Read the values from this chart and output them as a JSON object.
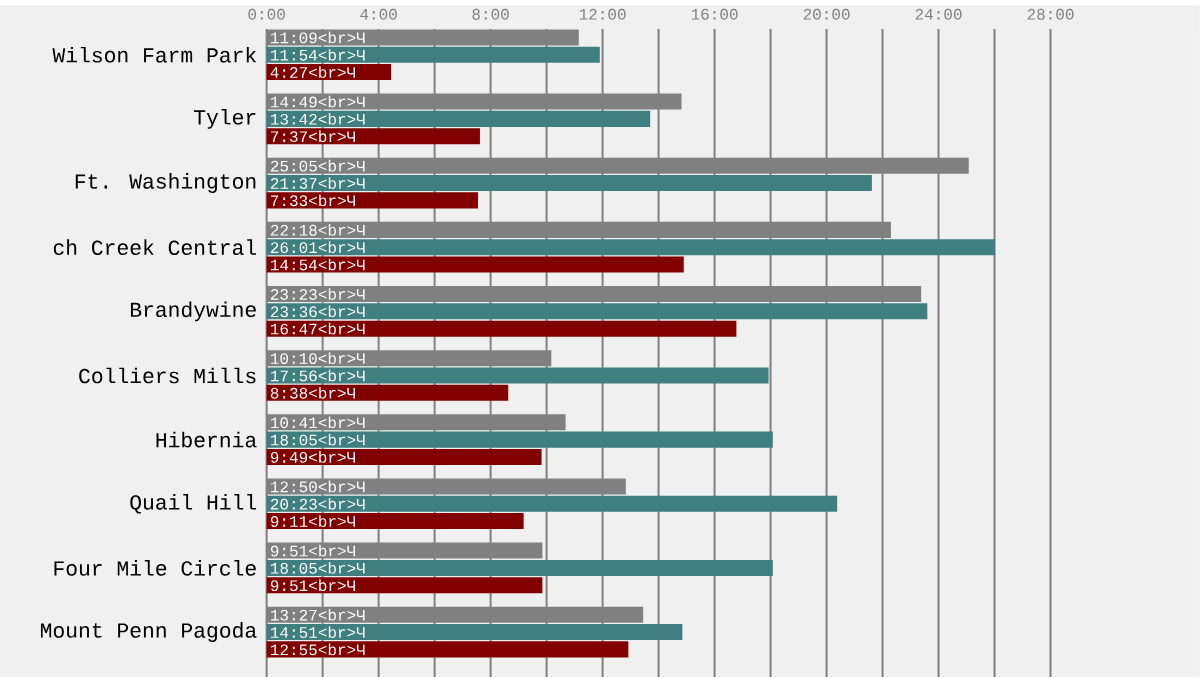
{
  "chart_data": {
    "type": "bar",
    "orientation": "horizontal",
    "categories": [
      "Wilson Farm Park",
      "Tyler",
      "Ft. Washington",
      "ch Creek Central",
      "Brandywine",
      "Colliers Mills",
      "Hibernia",
      "Quail Hill",
      "Four Mile Circle",
      "Mount Penn Pagoda"
    ],
    "series": [
      {
        "color": "#808080",
        "values": [
          11.15,
          14.82,
          25.08,
          22.3,
          23.38,
          10.17,
          10.68,
          12.83,
          9.85,
          13.45
        ],
        "value_labels": [
          "11:09<br>Ч",
          "14:49<br>Ч",
          "25:05<br>Ч",
          "22:18<br>Ч",
          "23:23<br>Ч",
          "10:10<br>Ч",
          "10:41<br>Ч",
          "12:50<br>Ч",
          "9:51<br>Ч",
          "13:27<br>Ч"
        ]
      },
      {
        "color": "#3f7f7f",
        "values": [
          11.9,
          13.7,
          21.62,
          26.02,
          23.6,
          17.93,
          18.08,
          20.38,
          18.08,
          14.85
        ],
        "value_labels": [
          "11:54<br>Ч",
          "13:42<br>Ч",
          "21:37<br>Ч",
          "26:01<br>Ч",
          "23:36<br>Ч",
          "17:56<br>Ч",
          "18:05<br>Ч",
          "20:23<br>Ч",
          "18:05<br>Ч",
          "14:51<br>Ч"
        ]
      },
      {
        "color": "#800000",
        "values": [
          4.45,
          7.62,
          7.55,
          14.9,
          16.78,
          8.63,
          9.82,
          9.18,
          9.85,
          12.92
        ],
        "value_labels": [
          "4:27<br>Ч",
          "7:37<br>Ч",
          "7:33<br>Ч",
          "14:54<br>Ч",
          "16:47<br>Ч",
          "8:38<br>Ч",
          "9:49<br>Ч",
          "9:11<br>Ч",
          "9:51<br>Ч",
          "12:55<br>Ч"
        ]
      }
    ],
    "xlim": [
      0,
      33.33
    ],
    "xticks": [
      {
        "value": 0,
        "label": "0:00"
      },
      {
        "value": 2,
        "label": null
      },
      {
        "value": 4,
        "label": "4:00"
      },
      {
        "value": 6,
        "label": null
      },
      {
        "value": 8,
        "label": "8:00"
      },
      {
        "value": 10,
        "label": null
      },
      {
        "value": 12,
        "label": "12:00"
      },
      {
        "value": 14,
        "label": null
      },
      {
        "value": 16,
        "label": "16:00"
      },
      {
        "value": 18,
        "label": null
      },
      {
        "value": 20,
        "label": "20:00"
      },
      {
        "value": 22,
        "label": null
      },
      {
        "value": 24,
        "label": "24:00"
      },
      {
        "value": 26,
        "label": null
      },
      {
        "value": 28,
        "label": "28:00"
      }
    ],
    "grid": "x"
  }
}
